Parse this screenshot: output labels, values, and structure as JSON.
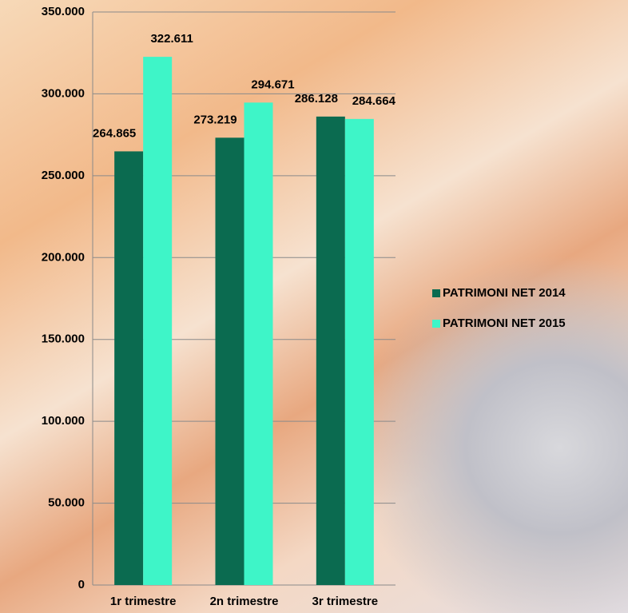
{
  "chart_data": {
    "type": "bar",
    "categories": [
      "1r trimestre",
      "2n trimestre",
      "3r trimestre"
    ],
    "series": [
      {
        "name": "PATRIMONI NET 2014",
        "color": "#0b6b50",
        "values": [
          264865,
          273219,
          286128
        ],
        "value_labels": [
          "264.865",
          "273.219",
          "286.128"
        ]
      },
      {
        "name": "PATRIMONI NET 2015",
        "color": "#3ef5c8",
        "values": [
          322611,
          294671,
          284664
        ],
        "value_labels": [
          "322.611",
          "294.671",
          "284.664"
        ]
      }
    ],
    "ylim": [
      0,
      350000
    ],
    "yticks": [
      0,
      {
        "value": 50000,
        "label": "50.000"
      },
      {
        "value": 100000,
        "label": "100.000"
      },
      {
        "value": 150000,
        "label": "150.000"
      },
      {
        "value": 200000,
        "label": "200.000"
      },
      {
        "value": 250000,
        "label": "250.000"
      },
      {
        "value": 300000,
        "label": "300.000"
      },
      {
        "value": 350000,
        "label": "350.000"
      }
    ],
    "grid": true,
    "legend": "right"
  }
}
